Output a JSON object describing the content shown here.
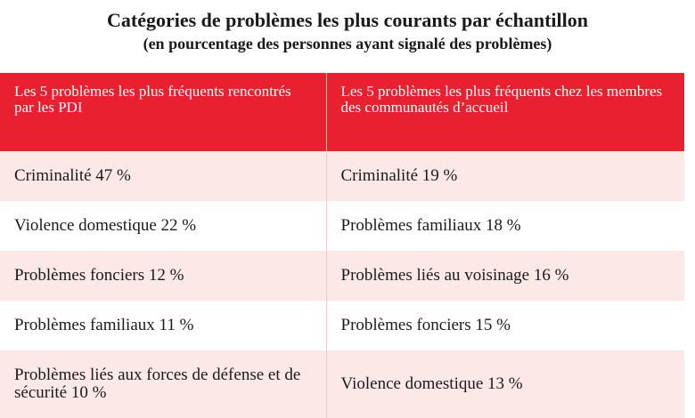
{
  "chart_data": {
    "type": "table",
    "title": "Catégories de problèmes les plus courants par échantillon",
    "subtitle": "(en pourcentage des personnes ayant signalé des problèmes)",
    "columns": [
      "Les 5 problèmes les plus fréquents rencontrés par les PDI",
      "Les 5 problèmes les plus fréquents chez les membres des communautés d’accueil"
    ],
    "rows": [
      [
        "Criminalité 47 %",
        "Criminalité 19 %"
      ],
      [
        "Violence domestique 22 %",
        "Problèmes familiaux 18 %"
      ],
      [
        "Problèmes fonciers 12 %",
        "Problèmes liés au voisinage 16 %"
      ],
      [
        "Problèmes familiaux 11 %",
        "Problèmes fonciers 15 %"
      ],
      [
        "Problèmes liés aux forces de défense et de sécurité 10 %",
        "Violence domestique 13 %"
      ]
    ],
    "series": [
      {
        "name": "PDI",
        "categories": [
          "Criminalité",
          "Violence domestique",
          "Problèmes fonciers",
          "Problèmes familiaux",
          "Problèmes liés aux forces de défense et de sécurité"
        ],
        "values": [
          47,
          22,
          12,
          11,
          10
        ]
      },
      {
        "name": "communautés d’accueil",
        "categories": [
          "Criminalité",
          "Problèmes familiaux",
          "Problèmes liés au voisinage",
          "Problèmes fonciers",
          "Violence domestique"
        ],
        "values": [
          19,
          18,
          16,
          15,
          13
        ]
      }
    ],
    "colors": {
      "header_bg": "#e8202f",
      "header_text": "#ffffff",
      "row_alt_bg": "#fde8e8"
    }
  }
}
